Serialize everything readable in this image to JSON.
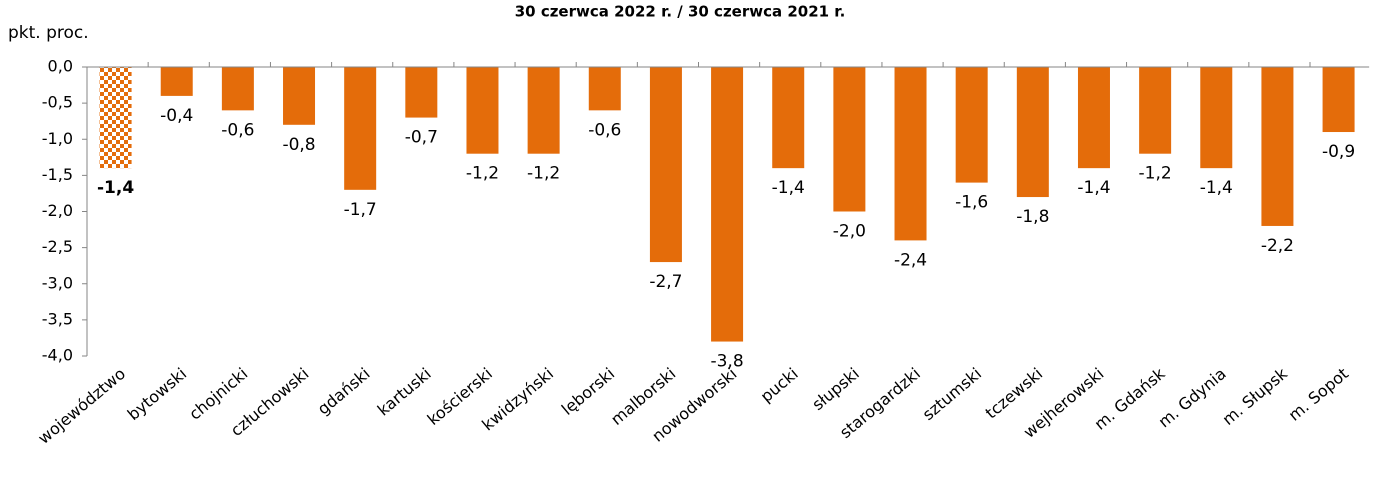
{
  "chart_data": {
    "type": "bar",
    "title": "30 czerwca 2022 r. / 30 czerwca 2021 r.",
    "y_label": "pkt. proc.",
    "categories": [
      "województwo",
      "bytowski",
      "chojnicki",
      "człuchowski",
      "gdański",
      "kartuski",
      "kościerski",
      "kwidzyński",
      "lęborski",
      "malborski",
      "nowodworski",
      "pucki",
      "słupski",
      "starogardzki",
      "sztumski",
      "tczewski",
      "wejherowski",
      "m. Gdańsk",
      "m. Gdynia",
      "m. Słupsk",
      "m. Sopot"
    ],
    "values": [
      -1.4,
      -0.4,
      -0.6,
      -0.8,
      -1.7,
      -0.7,
      -1.2,
      -1.2,
      -0.6,
      -2.7,
      -3.8,
      -1.4,
      -2.0,
      -2.4,
      -1.6,
      -1.8,
      -1.4,
      -1.2,
      -1.4,
      -2.2,
      -0.9
    ],
    "value_labels": [
      "-1,4",
      "-0,4",
      "-0,6",
      "-0,8",
      "-1,7",
      "-0,7",
      "-1,2",
      "-1,2",
      "-0,6",
      "-2,7",
      "-3,8",
      "-1,4",
      "-2,0",
      "-2,4",
      "-1,6",
      "-1,8",
      "-1,4",
      "-1,2",
      "-1,4",
      "-2,2",
      "-0,9"
    ],
    "color": "#e46c0a",
    "highlight": [
      0
    ],
    "ylim": [
      -4,
      0
    ],
    "yticks": [
      {
        "value": 0,
        "label": "0,0"
      },
      {
        "value": -0.5,
        "label": "-0,5"
      },
      {
        "value": -1,
        "label": "-1,0"
      },
      {
        "value": -1.5,
        "label": "-1,5"
      },
      {
        "value": -2,
        "label": "-2,0"
      },
      {
        "value": -2.5,
        "label": "-2,5"
      },
      {
        "value": -3,
        "label": "-3,0"
      },
      {
        "value": -3.5,
        "label": "-3,5"
      },
      {
        "value": -4,
        "label": "-4,0"
      }
    ],
    "grid": false
  }
}
